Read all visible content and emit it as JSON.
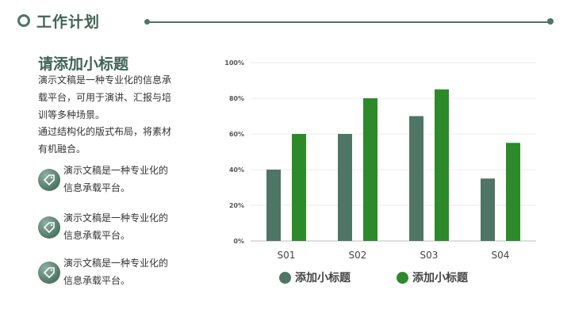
{
  "header": {
    "title": "工作计划"
  },
  "content": {
    "subtitle": "请添加小标题",
    "paragraph_1": "演示文稿是一种专业化的信息承载平台，可用于演讲、汇报与培训等多种场景。",
    "paragraph_2": "通过结构化的版式布局，将素材有机融合。",
    "features": [
      {
        "icon": "tag-icon",
        "text": "演示文稿是一种专业化的信息承载平台。"
      },
      {
        "icon": "tag-icon",
        "text": "演示文稿是一种专业化的信息承载平台。"
      },
      {
        "icon": "tag-icon",
        "text": "演示文稿是一种专业化的信息承载平台。"
      }
    ]
  },
  "colors": {
    "series_1": "#4e7566",
    "series_2": "#2d8a2a",
    "accent": "#3f6355"
  },
  "chart_data": {
    "type": "bar",
    "title": "",
    "xlabel": "",
    "ylabel": "",
    "categories": [
      "S01",
      "S02",
      "S03",
      "S04"
    ],
    "y_ticks": [
      "0%",
      "20%",
      "40%",
      "60%",
      "80%",
      "100%"
    ],
    "ylim": [
      0,
      100
    ],
    "grid": true,
    "legend_position": "bottom",
    "series": [
      {
        "name": "添加小标题",
        "values": [
          40,
          60,
          70,
          35
        ]
      },
      {
        "name": "添加小标题",
        "values": [
          60,
          80,
          85,
          55
        ]
      }
    ]
  }
}
